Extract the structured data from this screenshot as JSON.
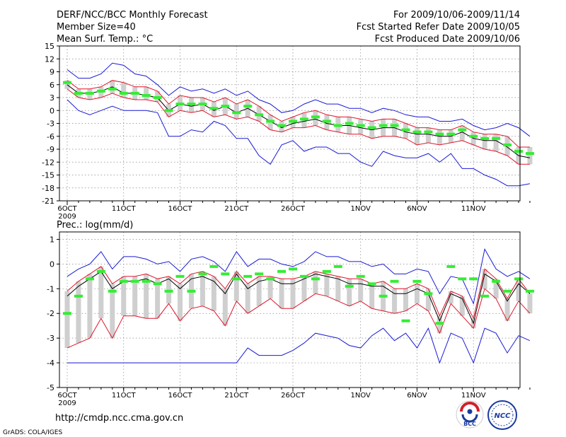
{
  "header": {
    "title": "DERF/NCC/BCC Monthly Forecast",
    "member": "Member Size=40",
    "variable": "Mean Surf. Temp.: °C",
    "period": "For 2009/10/06-2009/11/14",
    "started": "Fcst Started Refer Date 2009/10/05",
    "produced": "Fcst Produced Date 2009/10/06"
  },
  "footer": {
    "url": "http://cmdp.ncc.cma.gov.cn",
    "credit": "GrADS: COLA/IGES",
    "logo_bcc": "BCC",
    "logo_ncc": "NCC"
  },
  "colors": {
    "ensemble_mean": "#000000",
    "spread": "#e0152a",
    "envelope": "#1a1ad6",
    "box": "#cfcfcf",
    "median": "#33ee33",
    "grid": "#888888"
  },
  "chart_data": [
    {
      "type": "line",
      "title": "Mean Surf. Temp.: °C",
      "xlabel": "",
      "ylabel": "°C",
      "ylim": [
        -21,
        15
      ],
      "yticks": [
        15,
        12,
        9,
        6,
        3,
        0,
        -3,
        -6,
        -9,
        -12,
        -15,
        -18,
        -21
      ],
      "x_tick_days": [
        0,
        5,
        10,
        15,
        20,
        26,
        31,
        36
      ],
      "x_tick_labels": [
        "6OCT",
        "11OCT",
        "16OCT",
        "21OCT",
        "26OCT",
        "1NOV",
        "6NOV",
        "11NOV"
      ],
      "x_year_label": "2009",
      "grid": true,
      "series": [
        {
          "name": "upper envelope",
          "values": [
            9.5,
            7.5,
            7.5,
            8.5,
            11,
            10.5,
            8.5,
            8,
            6,
            3.5,
            5.5,
            4.5,
            5,
            4,
            5,
            3.5,
            4.5,
            2.5,
            1.5,
            -0.5,
            0,
            1.5,
            2.5,
            1.5,
            1.5,
            0.5,
            0.5,
            -0.5,
            0.5,
            0,
            -1,
            -1.5,
            -1.5,
            -2.5,
            -2.5,
            -2,
            -3.5,
            -4.5,
            -4,
            -3,
            -4,
            -6
          ]
        },
        {
          "name": "upper spread",
          "values": [
            7,
            5,
            5,
            5.5,
            7,
            6.5,
            5.5,
            5.5,
            4.5,
            1.5,
            3.5,
            3,
            3,
            2,
            3,
            1.5,
            2.5,
            1,
            -1,
            -2.5,
            -1.5,
            -0.5,
            0,
            -1,
            -1.5,
            -1.5,
            -2,
            -2.5,
            -2,
            -2,
            -3,
            -4,
            -4,
            -4.5,
            -4.5,
            -3.5,
            -5,
            -5.5,
            -5.5,
            -6,
            -8.5,
            -8.5
          ]
        },
        {
          "name": "ensemble mean",
          "values": [
            6,
            4,
            4,
            4.5,
            5.5,
            4,
            4,
            3.5,
            3,
            0,
            1.5,
            1,
            1.5,
            0,
            1,
            -0.5,
            0.5,
            -1,
            -2.5,
            -4,
            -3,
            -2.5,
            -2,
            -3,
            -3.5,
            -3.5,
            -4,
            -4.5,
            -4,
            -4,
            -5,
            -5.5,
            -5.5,
            -6,
            -6,
            -5,
            -6.5,
            -7,
            -7,
            -8.5,
            -10.5,
            -11
          ]
        },
        {
          "name": "lower spread",
          "values": [
            5,
            3,
            2.5,
            3,
            4,
            3,
            2.5,
            2.5,
            2,
            -1.5,
            0,
            -0.5,
            0,
            -1.5,
            -1,
            -2,
            -1.5,
            -2.5,
            -4.5,
            -5,
            -4,
            -4,
            -3.5,
            -4.5,
            -5,
            -5.5,
            -5.5,
            -6.5,
            -6,
            -6,
            -6.5,
            -8,
            -7.5,
            -8,
            -7.5,
            -7,
            -8,
            -9,
            -9.5,
            -10.5,
            -12.5,
            -12.5
          ]
        },
        {
          "name": "lower envelope",
          "values": [
            2.5,
            0,
            -1,
            0,
            1,
            0,
            0,
            0,
            -0.5,
            -6,
            -6,
            -4.5,
            -5,
            -2.5,
            -3.5,
            -6.5,
            -6.5,
            -10.5,
            -12.5,
            -8,
            -7,
            -9.5,
            -8.5,
            -8.5,
            -10,
            -10,
            -12,
            -13,
            -9.5,
            -10.5,
            -11,
            -11,
            -10,
            -12,
            -10,
            -13.5,
            -13.5,
            -15,
            -16,
            -17.5,
            -17.5,
            -17
          ]
        }
      ],
      "boxes": {
        "name": "member spread",
        "upper": [
          7,
          5,
          5,
          5.5,
          7,
          6.5,
          5.5,
          5.5,
          4.5,
          1.5,
          3.5,
          3,
          3,
          2,
          3,
          1.5,
          2.5,
          1,
          -1,
          -2.5,
          -1.5,
          -0.5,
          0,
          -1,
          -1.5,
          -1.5,
          -2,
          -2.5,
          -2,
          -2,
          -3,
          -4,
          -4,
          -4.5,
          -4.5,
          -3.5,
          -5,
          -5.5,
          -5.5,
          -6,
          -8.5,
          -8.5
        ],
        "lower": [
          5,
          3,
          2.5,
          3,
          4,
          3,
          2.5,
          2.5,
          2,
          -1.5,
          0,
          -0.5,
          0,
          -1.5,
          -1,
          -2,
          -1.5,
          -2.5,
          -4.5,
          -5,
          -4,
          -4,
          -3.5,
          -4.5,
          -5,
          -5.5,
          -5.5,
          -6.5,
          -6,
          -6,
          -6.5,
          -8,
          -7.5,
          -8,
          -7.5,
          -7,
          -8,
          -9,
          -9.5,
          -10.5,
          -12.5,
          -12.5
        ]
      },
      "medians": {
        "name": "median",
        "values": [
          6.5,
          4,
          4,
          4.5,
          5,
          4,
          4,
          3.5,
          3,
          0,
          1.5,
          1.5,
          1.5,
          0.5,
          1,
          -0.5,
          1,
          -1,
          -2.5,
          -3.5,
          -2.5,
          -2,
          -1.5,
          -2.5,
          -3.5,
          -3,
          -3.5,
          -4,
          -3.5,
          -3.5,
          -4.5,
          -5,
          -5,
          -5.5,
          -5.5,
          -4.5,
          -6,
          -6.5,
          -6.5,
          -8,
          -9.5,
          -10
        ]
      }
    },
    {
      "type": "line",
      "title": "Prec.: log(mm/d)",
      "xlabel": "",
      "ylabel": "log(mm/d)",
      "ylim": [
        -5,
        1.3
      ],
      "yticks": [
        1,
        0,
        -1,
        -2,
        -3,
        -4,
        -5
      ],
      "x_tick_days": [
        0,
        5,
        10,
        15,
        20,
        26,
        31,
        36
      ],
      "x_tick_labels": [
        "6OCT",
        "11OCT",
        "16OCT",
        "21OCT",
        "26OCT",
        "1NOV",
        "6NOV",
        "11NOV"
      ],
      "x_year_label": "2009",
      "grid": true,
      "series": [
        {
          "name": "upper envelope",
          "values": [
            -0.5,
            -0.2,
            0,
            0.5,
            -0.2,
            0.3,
            0.3,
            0.2,
            0,
            0.1,
            -0.3,
            0.2,
            0.3,
            0.1,
            -0.3,
            0.5,
            -0.1,
            0.2,
            0.2,
            0,
            -0.1,
            0.1,
            0.5,
            0.3,
            0.3,
            0.1,
            0.1,
            -0.1,
            0,
            -0.4,
            -0.4,
            -0.2,
            -0.3,
            -1.2,
            -0.5,
            -0.6,
            -1.6,
            0.6,
            -0.2,
            -0.5,
            -0.3,
            -0.6
          ]
        },
        {
          "name": "upper spread",
          "values": [
            -1.1,
            -0.7,
            -0.4,
            -0.1,
            -0.8,
            -0.5,
            -0.5,
            -0.4,
            -0.6,
            -0.5,
            -0.8,
            -0.4,
            -0.3,
            -0.5,
            -1,
            -0.3,
            -0.8,
            -0.5,
            -0.5,
            -0.6,
            -0.6,
            -0.5,
            -0.3,
            -0.4,
            -0.5,
            -0.6,
            -0.6,
            -0.8,
            -0.7,
            -1,
            -1,
            -0.8,
            -1,
            -2.1,
            -1.1,
            -1.3,
            -2.2,
            -0.2,
            -0.6,
            -1.4,
            -0.6,
            -1.2
          ]
        },
        {
          "name": "ensemble mean",
          "values": [
            -1.3,
            -0.9,
            -0.6,
            -0.3,
            -1,
            -0.7,
            -0.7,
            -0.6,
            -0.8,
            -0.6,
            -1,
            -0.6,
            -0.5,
            -0.7,
            -1.2,
            -0.4,
            -1,
            -0.7,
            -0.6,
            -0.8,
            -0.8,
            -0.6,
            -0.4,
            -0.5,
            -0.6,
            -0.8,
            -0.8,
            -0.9,
            -0.9,
            -1.2,
            -1.2,
            -1,
            -1.2,
            -2.3,
            -1.2,
            -1.4,
            -2.4,
            -0.4,
            -0.7,
            -1.5,
            -0.8,
            -1.2
          ]
        },
        {
          "name": "lower spread",
          "values": [
            -3.4,
            -3.2,
            -3,
            -2.2,
            -3,
            -2.1,
            -2.1,
            -2.2,
            -2.2,
            -1.6,
            -2.3,
            -1.8,
            -1.7,
            -1.9,
            -2.5,
            -1.5,
            -2,
            -1.7,
            -1.4,
            -1.8,
            -1.8,
            -1.5,
            -1.2,
            -1.3,
            -1.5,
            -1.7,
            -1.5,
            -1.8,
            -1.9,
            -2,
            -1.9,
            -1.6,
            -1.9,
            -2.8,
            -1.6,
            -2.1,
            -2.6,
            -1,
            -1.4,
            -2.3,
            -1.5,
            -2
          ]
        },
        {
          "name": "lower envelope",
          "values": [
            -4,
            -4,
            -4,
            -4,
            -4,
            -4,
            -4,
            -4,
            -4,
            -4,
            -4,
            -4,
            -4,
            -4,
            -4,
            -4,
            -3.4,
            -3.7,
            -3.7,
            -3.7,
            -3.5,
            -3.2,
            -2.8,
            -2.9,
            -3,
            -3.3,
            -3.4,
            -2.9,
            -2.6,
            -3.1,
            -2.8,
            -3.4,
            -2.6,
            -4,
            -2.8,
            -3,
            -4,
            -2.6,
            -2.8,
            -3.6,
            -2.9,
            -3.1
          ]
        }
      ],
      "boxes": {
        "name": "member spread",
        "upper": [
          -1.1,
          -0.7,
          -0.4,
          -0.1,
          -0.8,
          -0.5,
          -0.5,
          -0.4,
          -0.6,
          -0.5,
          -0.8,
          -0.4,
          -0.3,
          -0.5,
          -1,
          -0.3,
          -0.8,
          -0.5,
          -0.5,
          -0.6,
          -0.6,
          -0.5,
          -0.3,
          -0.4,
          -0.5,
          -0.6,
          -0.6,
          -0.8,
          -0.7,
          -1,
          -1,
          -0.8,
          -1,
          -2.1,
          -1.1,
          -1.3,
          -2.2,
          -0.2,
          -0.6,
          -1.4,
          -0.6,
          -1.2
        ],
        "lower": [
          -3.4,
          -3.2,
          -3,
          -2.2,
          -3,
          -2.1,
          -2.1,
          -2.2,
          -2.2,
          -1.6,
          -2.3,
          -1.8,
          -1.7,
          -1.9,
          -2.5,
          -1.5,
          -2,
          -1.7,
          -1.4,
          -1.8,
          -1.8,
          -1.5,
          -1.2,
          -1.3,
          -1.5,
          -1.7,
          -1.5,
          -1.8,
          -1.9,
          -2,
          -1.9,
          -1.6,
          -1.9,
          -2.8,
          -1.6,
          -2.1,
          -2.6,
          -1,
          -1.4,
          -2.3,
          -1.5,
          -2
        ]
      },
      "medians": {
        "name": "median",
        "values": [
          -2,
          -1.3,
          -0.6,
          -0.3,
          -1.1,
          -0.7,
          -0.7,
          -0.7,
          -0.8,
          -1.1,
          -0.5,
          -1.1,
          -0.4,
          -0.1,
          -0.4,
          -0.6,
          -0.5,
          -0.4,
          -0.6,
          -0.3,
          -0.2,
          -0.5,
          -0.6,
          -0.3,
          -0.1,
          -0.9,
          -0.5,
          -0.8,
          -1.3,
          -0.7,
          -2.3,
          -0.7,
          -1.2,
          -2.4,
          -0.1,
          -0.6,
          -0.6,
          -1.3,
          -0.7,
          -1.1,
          -0.6,
          -1.1
        ]
      }
    }
  ]
}
